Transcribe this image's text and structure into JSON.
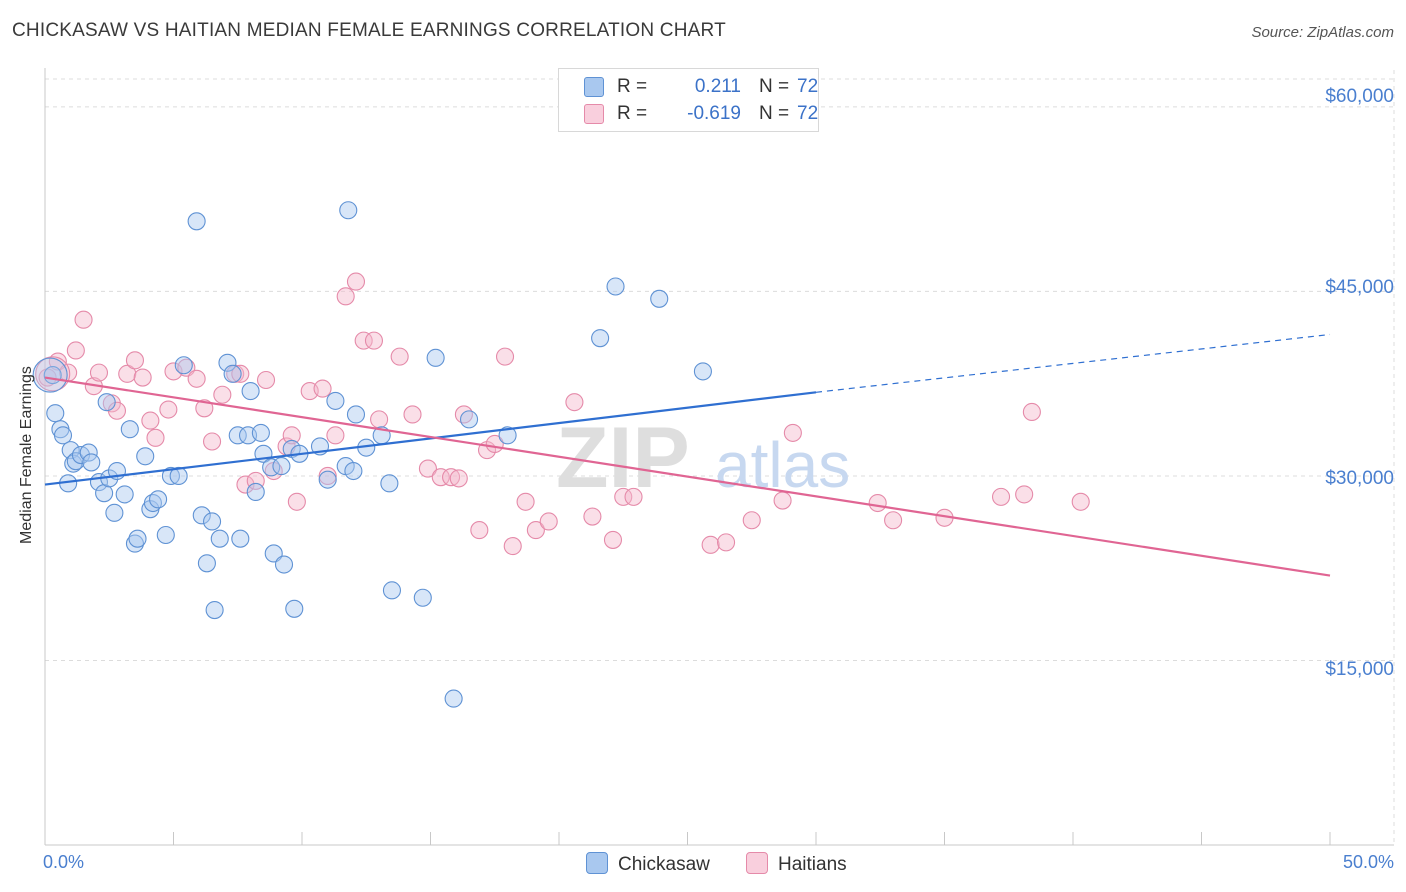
{
  "header": {
    "title": "CHICKASAW VS HAITIAN MEDIAN FEMALE EARNINGS CORRELATION CHART",
    "source": "Source: ZipAtlas.com"
  },
  "stats": [
    {
      "r_label": "R =",
      "r_value": "0.211",
      "n_label": "N =",
      "n_value": "72"
    },
    {
      "r_label": "R =",
      "r_value": "-0.619",
      "n_label": "N =",
      "n_value": "72"
    }
  ],
  "legend": [
    {
      "label": "Chickasaw"
    },
    {
      "label": "Haitians"
    }
  ],
  "watermark": {
    "zip": "ZIP",
    "atlas": "atlas"
  },
  "colors": {
    "chickasaw_fill": "#a9c8ef",
    "chickasaw_stroke": "#5f92d4",
    "chickasaw_line": "#2f6fd1",
    "haitians_fill": "#f5b8cc",
    "haitians_stroke": "#e58aa9",
    "haitians_line": "#e06593",
    "axis_text": "#4a7fcf",
    "grid": "#dcdcdc"
  },
  "chart_data": {
    "type": "scatter",
    "title": "CHICKASAW VS HAITIAN MEDIAN FEMALE EARNINGS CORRELATION CHART",
    "xlabel": "",
    "ylabel": "Median Female Earnings",
    "xlim": [
      0,
      50
    ],
    "ylim": [
      0,
      63000
    ],
    "x_tick_labels": [
      "0.0%",
      "50.0%"
    ],
    "y_ticks": [
      15000,
      30000,
      45000,
      60000
    ],
    "y_tick_labels": [
      "$15,000",
      "$30,000",
      "$45,000",
      "$60,000"
    ],
    "series": [
      {
        "name": "Chickasaw",
        "r": 0.211,
        "n": 72,
        "trend": {
          "x": [
            0,
            30
          ],
          "y": [
            29300,
            36800
          ],
          "dashed_to": {
            "x": 50,
            "y": 41500
          }
        },
        "points": [
          [
            0.3,
            38200
          ],
          [
            0.4,
            35100
          ],
          [
            0.6,
            33800
          ],
          [
            0.7,
            33300
          ],
          [
            0.9,
            29400
          ],
          [
            1.0,
            32100
          ],
          [
            1.1,
            31000
          ],
          [
            1.2,
            31200
          ],
          [
            1.4,
            31700
          ],
          [
            1.7,
            31900
          ],
          [
            1.8,
            31100
          ],
          [
            2.1,
            29500
          ],
          [
            2.3,
            28600
          ],
          [
            2.4,
            36000
          ],
          [
            2.5,
            29800
          ],
          [
            2.7,
            27000
          ],
          [
            2.8,
            30400
          ],
          [
            3.1,
            28500
          ],
          [
            3.3,
            33800
          ],
          [
            3.5,
            24500
          ],
          [
            3.6,
            24900
          ],
          [
            3.9,
            31600
          ],
          [
            4.1,
            27300
          ],
          [
            4.2,
            27800
          ],
          [
            4.4,
            28100
          ],
          [
            4.7,
            25200
          ],
          [
            4.9,
            30000
          ],
          [
            5.2,
            30000
          ],
          [
            5.4,
            39000
          ],
          [
            5.9,
            50700
          ],
          [
            6.1,
            26800
          ],
          [
            6.3,
            22900
          ],
          [
            6.5,
            26300
          ],
          [
            6.6,
            19100
          ],
          [
            6.8,
            24900
          ],
          [
            7.1,
            39200
          ],
          [
            7.3,
            38300
          ],
          [
            7.5,
            33300
          ],
          [
            7.6,
            24900
          ],
          [
            7.9,
            33300
          ],
          [
            8.0,
            36900
          ],
          [
            8.2,
            28700
          ],
          [
            8.4,
            33500
          ],
          [
            8.5,
            31800
          ],
          [
            8.8,
            30700
          ],
          [
            8.9,
            23700
          ],
          [
            9.2,
            30800
          ],
          [
            9.3,
            22800
          ],
          [
            9.6,
            32200
          ],
          [
            9.7,
            19200
          ],
          [
            9.9,
            31800
          ],
          [
            10.7,
            32400
          ],
          [
            11.0,
            29700
          ],
          [
            11.3,
            36100
          ],
          [
            11.7,
            30800
          ],
          [
            11.8,
            51600
          ],
          [
            12.0,
            30400
          ],
          [
            12.1,
            35000
          ],
          [
            12.5,
            32300
          ],
          [
            13.1,
            33300
          ],
          [
            13.4,
            29400
          ],
          [
            13.5,
            20700
          ],
          [
            14.7,
            20100
          ],
          [
            15.2,
            39600
          ],
          [
            15.9,
            11900
          ],
          [
            16.5,
            34600
          ],
          [
            18.0,
            33300
          ],
          [
            21.6,
            41200
          ],
          [
            22.2,
            45400
          ],
          [
            23.9,
            44400
          ],
          [
            25.6,
            38500
          ],
          [
            0.2,
            38200
          ]
        ]
      },
      {
        "name": "Haitians",
        "r": -0.619,
        "n": 72,
        "trend": {
          "x": [
            0,
            50
          ],
          "y": [
            38000,
            21900
          ]
        },
        "points": [
          [
            0.1,
            38000
          ],
          [
            0.5,
            39300
          ],
          [
            0.9,
            38400
          ],
          [
            1.2,
            40200
          ],
          [
            1.5,
            42700
          ],
          [
            1.9,
            37300
          ],
          [
            2.1,
            38400
          ],
          [
            2.6,
            35900
          ],
          [
            2.8,
            35300
          ],
          [
            3.2,
            38300
          ],
          [
            3.5,
            39400
          ],
          [
            3.8,
            38000
          ],
          [
            4.1,
            34500
          ],
          [
            4.3,
            33100
          ],
          [
            4.8,
            35400
          ],
          [
            5.0,
            38500
          ],
          [
            5.5,
            38800
          ],
          [
            5.9,
            37900
          ],
          [
            6.2,
            35500
          ],
          [
            6.5,
            32800
          ],
          [
            6.9,
            36600
          ],
          [
            7.4,
            38300
          ],
          [
            7.6,
            38300
          ],
          [
            7.8,
            29300
          ],
          [
            8.2,
            29600
          ],
          [
            8.6,
            37800
          ],
          [
            8.9,
            30400
          ],
          [
            9.4,
            32400
          ],
          [
            9.6,
            33300
          ],
          [
            9.8,
            27900
          ],
          [
            10.3,
            36900
          ],
          [
            10.8,
            37100
          ],
          [
            11.0,
            30000
          ],
          [
            11.3,
            33300
          ],
          [
            11.7,
            44600
          ],
          [
            12.1,
            45800
          ],
          [
            12.4,
            41000
          ],
          [
            12.8,
            41000
          ],
          [
            13.0,
            34600
          ],
          [
            13.8,
            39700
          ],
          [
            14.3,
            35000
          ],
          [
            14.9,
            30600
          ],
          [
            15.4,
            29900
          ],
          [
            15.8,
            29900
          ],
          [
            16.1,
            29800
          ],
          [
            16.3,
            35000
          ],
          [
            16.9,
            25600
          ],
          [
            17.2,
            32100
          ],
          [
            17.5,
            32600
          ],
          [
            17.9,
            39700
          ],
          [
            18.2,
            24300
          ],
          [
            18.7,
            27900
          ],
          [
            19.1,
            25600
          ],
          [
            19.6,
            26300
          ],
          [
            20.6,
            36000
          ],
          [
            21.3,
            26700
          ],
          [
            22.1,
            24800
          ],
          [
            22.5,
            28300
          ],
          [
            22.9,
            28300
          ],
          [
            25.9,
            24400
          ],
          [
            26.5,
            24600
          ],
          [
            27.5,
            26400
          ],
          [
            28.7,
            28000
          ],
          [
            29.1,
            33500
          ],
          [
            32.4,
            27800
          ],
          [
            33.0,
            26400
          ],
          [
            35.0,
            26600
          ],
          [
            37.2,
            28300
          ],
          [
            38.1,
            28500
          ],
          [
            38.4,
            35200
          ],
          [
            40.3,
            27900
          ],
          [
            0.3,
            38300
          ]
        ]
      }
    ]
  }
}
